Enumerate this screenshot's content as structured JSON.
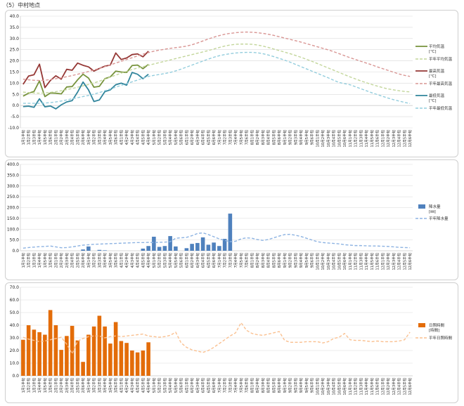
{
  "page": {
    "title": "（5）中村地点"
  },
  "x_categories": [
    "1月1半旬",
    "1月2半旬",
    "1月3半旬",
    "1月4半旬",
    "1月5半旬",
    "1月6半旬",
    "2月1半旬",
    "2月2半旬",
    "2月3半旬",
    "2月4半旬",
    "2月5半旬",
    "2月6半旬",
    "3月1半旬",
    "3月2半旬",
    "3月3半旬",
    "3月4半旬",
    "3月5半旬",
    "3月6半旬",
    "4月1半旬",
    "4月2半旬",
    "4月3半旬",
    "4月4半旬",
    "4月5半旬",
    "4月6半旬",
    "5月1半旬",
    "5月2半旬",
    "5月3半旬",
    "5月4半旬",
    "5月5半旬",
    "5月6半旬",
    "6月1半旬",
    "6月2半旬",
    "6月3半旬",
    "6月4半旬",
    "6月5半旬",
    "6月6半旬",
    "7月1半旬",
    "7月2半旬",
    "7月3半旬",
    "7月4半旬",
    "7月5半旬",
    "7月6半旬",
    "8月1半旬",
    "8月2半旬",
    "8月3半旬",
    "8月4半旬",
    "8月5半旬",
    "8月6半旬",
    "9月1半旬",
    "9月2半旬",
    "9月3半旬",
    "9月4半旬",
    "9月5半旬",
    "9月6半旬",
    "10月1半旬",
    "10月2半旬",
    "10月3半旬",
    "10月4半旬",
    "10月5半旬",
    "10月6半旬",
    "11月1半旬",
    "11月2半旬",
    "11月3半旬",
    "11月4半旬",
    "11月5半旬",
    "11月6半旬",
    "12月1半旬",
    "12月2半旬",
    "12月3半旬",
    "12月4半旬",
    "12月5半旬",
    "12月6半旬"
  ],
  "chart_data": [
    {
      "type": "line",
      "ylim": [
        -10,
        40
      ],
      "yticks": [
        "40.0",
        "35.0",
        "30.0",
        "25.0",
        "20.0",
        "15.0",
        "10.0",
        "5.0",
        "0.0",
        "-5.0",
        "-10.0"
      ],
      "series": [
        {
          "name": "平均気温\n[℃]",
          "style": "solid",
          "color": "#77933c",
          "values": [
            4.2,
            5.5,
            6.3,
            11.0,
            4.0,
            5.6,
            5.5,
            5.2,
            8.3,
            8.5,
            11.5,
            14.0,
            12.3,
            8.2,
            8.6,
            12.0,
            12.8,
            15.4,
            15.0,
            14.8,
            17.9,
            18.1,
            16.5,
            18.4
          ]
        },
        {
          "name": "平年平均気温",
          "style": "dashed",
          "color": "#c3d69b",
          "values": [
            6.0,
            5.8,
            5.6,
            5.5,
            5.6,
            5.9,
            6.2,
            6.6,
            7.1,
            7.6,
            8.2,
            8.8,
            9.4,
            10.1,
            10.9,
            11.8,
            12.7,
            13.6,
            14.5,
            15.3,
            16.1,
            16.8,
            17.4,
            18.0,
            18.6,
            19.2,
            19.8,
            20.4,
            21.0,
            21.6,
            22.2,
            22.8,
            23.4,
            24.0,
            24.6,
            25.3,
            26.0,
            26.6,
            27.1,
            27.4,
            27.5,
            27.5,
            27.4,
            27.1,
            26.6,
            26.0,
            25.3,
            24.6,
            23.9,
            23.2,
            22.4,
            21.6,
            20.7,
            19.8,
            18.8,
            17.8,
            16.8,
            15.8,
            14.8,
            13.8,
            12.8,
            11.9,
            11.0,
            10.2,
            9.4,
            8.7,
            8.0,
            7.4,
            7.0,
            6.6,
            6.3,
            6.1
          ]
        },
        {
          "name": "最高気温\n[℃]",
          "style": "solid",
          "color": "#953735",
          "values": [
            9.5,
            13.2,
            13.8,
            18.5,
            8.0,
            11.2,
            13.3,
            11.8,
            16.2,
            15.8,
            19.0,
            18.0,
            17.3,
            15.4,
            16.6,
            17.6,
            18.1,
            23.5,
            20.6,
            21.3,
            22.8,
            23.1,
            21.8,
            24.3
          ]
        },
        {
          "name": "平年最高気温",
          "style": "dashed",
          "color": "#d99694",
          "values": [
            11.8,
            11.5,
            11.3,
            11.2,
            11.3,
            11.6,
            12.0,
            12.4,
            12.9,
            13.4,
            14.0,
            14.6,
            15.2,
            15.9,
            16.6,
            17.4,
            18.2,
            19.0,
            19.8,
            20.6,
            21.4,
            22.2,
            23.0,
            23.7,
            24.3,
            24.8,
            25.2,
            25.6,
            25.9,
            26.2,
            26.6,
            27.2,
            28.0,
            28.9,
            29.8,
            30.6,
            31.3,
            31.9,
            32.3,
            32.6,
            32.8,
            32.9,
            32.8,
            32.6,
            32.3,
            31.9,
            31.4,
            30.8,
            30.2,
            29.6,
            29.0,
            28.4,
            27.7,
            27.0,
            26.3,
            25.6,
            24.9,
            24.1,
            23.2,
            22.3,
            21.4,
            20.6,
            19.8,
            19.0,
            18.2,
            17.3,
            16.5,
            15.7,
            14.9,
            14.1,
            13.5,
            13.0
          ]
        },
        {
          "name": "最低気温\n[℃]",
          "style": "solid",
          "color": "#31859c",
          "values": [
            -0.5,
            -0.3,
            -0.8,
            3.0,
            -0.6,
            -0.2,
            -1.5,
            0.3,
            1.6,
            2.2,
            6.0,
            10.5,
            7.0,
            1.8,
            2.5,
            6.2,
            7.0,
            9.3,
            10.0,
            9.1,
            14.8,
            14.0,
            12.0,
            14.0
          ]
        },
        {
          "name": "平年最低気温",
          "style": "dashed",
          "color": "#93cddd",
          "values": [
            1.0,
            1.0,
            1.0,
            1.0,
            1.1,
            1.3,
            1.6,
            2.0,
            2.5,
            3.0,
            3.5,
            4.0,
            4.5,
            5.1,
            5.8,
            6.6,
            7.4,
            8.2,
            9.0,
            9.8,
            10.6,
            11.4,
            12.2,
            13.0,
            13.5,
            13.9,
            14.3,
            14.8,
            15.5,
            16.3,
            17.2,
            18.1,
            19.0,
            19.9,
            20.8,
            21.6,
            22.3,
            22.8,
            23.2,
            23.5,
            23.7,
            23.8,
            23.8,
            23.6,
            23.2,
            22.6,
            21.9,
            21.1,
            20.3,
            19.4,
            18.4,
            17.4,
            16.4,
            15.4,
            14.4,
            13.4,
            12.4,
            11.3,
            10.3,
            9.8,
            9.3,
            8.4,
            7.5,
            6.6,
            5.7,
            4.9,
            4.1,
            3.3,
            2.6,
            2.0,
            1.4,
            0.9
          ]
        }
      ]
    },
    {
      "type": "bar",
      "ylim": [
        0,
        400
      ],
      "yticks": [
        "400.0",
        "350.0",
        "300.0",
        "250.0",
        "200.0",
        "150.0",
        "100.0",
        "50.0",
        "0.0"
      ],
      "series": [
        {
          "name": "降水量\n[㎜]",
          "style": "bar",
          "color": "#4f81bd",
          "values": [
            0,
            0,
            0,
            0,
            0,
            0,
            0,
            0,
            0,
            0,
            0,
            6,
            20,
            0,
            4,
            2,
            0,
            0,
            0,
            0,
            0,
            0,
            10,
            22,
            65,
            18,
            22,
            68,
            20,
            0,
            12,
            32,
            36,
            62,
            28,
            38,
            22,
            55,
            172
          ]
        },
        {
          "name": "平年降水量",
          "style": "dashed",
          "color": "#8db3e2",
          "values": [
            12,
            15,
            17,
            19,
            20,
            22,
            18,
            14,
            15,
            18,
            22,
            26,
            28,
            30,
            31,
            32,
            33,
            34,
            35,
            36,
            37,
            38,
            38,
            39,
            38,
            39,
            40,
            42,
            58,
            60,
            62,
            70,
            80,
            83,
            75,
            65,
            55,
            48,
            42,
            44,
            55,
            60,
            58,
            52,
            48,
            52,
            60,
            68,
            75,
            76,
            72,
            66,
            58,
            50,
            42,
            38,
            36,
            34,
            32,
            28,
            26,
            24,
            24,
            23,
            22,
            22,
            21,
            20,
            18,
            16,
            15,
            14
          ]
        }
      ]
    },
    {
      "type": "bar",
      "ylim": [
        0,
        70
      ],
      "yticks": [
        "70.0",
        "60.0",
        "50.0",
        "40.0",
        "30.0",
        "20.0",
        "10.0",
        "0.0"
      ],
      "series": [
        {
          "name": "日照時間\n[時間]",
          "style": "bar",
          "color": "#e36c09",
          "values": [
            28.5,
            40.0,
            36.5,
            34.5,
            32.5,
            52.0,
            40.0,
            20.5,
            31.5,
            39.5,
            28.0,
            11.0,
            32.5,
            39.0,
            47.5,
            39.0,
            25.5,
            42.5,
            27.5,
            26.0,
            20.0,
            18.5,
            20.0,
            26.5
          ]
        },
        {
          "name": "平年日照時間",
          "style": "dashed",
          "color": "#fac090",
          "values": [
            30.5,
            29.0,
            28.0,
            27.0,
            27.5,
            28.5,
            29.5,
            30.5,
            25.0,
            17.5,
            27.5,
            29.5,
            31.0,
            31.5,
            31.5,
            30.0,
            31.0,
            31.5,
            31.0,
            31.5,
            32.0,
            32.5,
            33.0,
            31.5,
            31.0,
            30.5,
            31.0,
            32.0,
            34.5,
            26.0,
            22.5,
            20.5,
            19.5,
            18.5,
            20.0,
            22.5,
            25.5,
            28.5,
            31.5,
            34.0,
            42.0,
            36.0,
            33.5,
            32.5,
            32.0,
            33.0,
            34.0,
            35.0,
            28.0,
            26.5,
            26.5,
            26.5,
            27.0,
            27.0,
            27.0,
            26.0,
            27.0,
            29.5,
            30.5,
            33.5,
            28.5,
            28.0,
            28.0,
            27.5,
            27.0,
            27.5,
            27.0,
            27.0,
            27.0,
            27.5,
            28.5,
            34.5
          ]
        }
      ]
    }
  ]
}
